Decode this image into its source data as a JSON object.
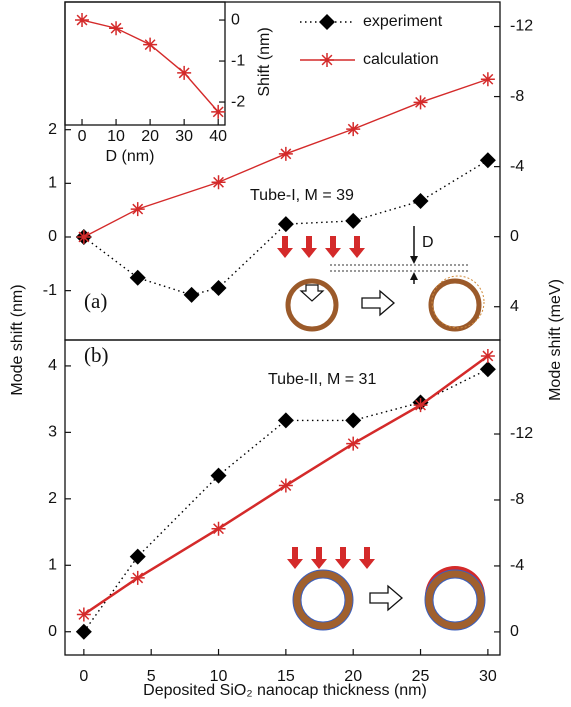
{
  "chart_data": [
    {
      "type": "line",
      "panel_label": "(a)",
      "annotation": "Tube-I, M = 39",
      "diagram_label": "D",
      "x": [
        0,
        4,
        8,
        10,
        15,
        20,
        25,
        30
      ],
      "series": [
        {
          "name": "experiment",
          "color": "#000000",
          "marker": "diamond",
          "linestyle": "dotted",
          "values": [
            0.0,
            -0.76,
            -1.08,
            -0.95,
            0.24,
            0.3,
            0.67,
            1.43
          ]
        },
        {
          "name": "calculation",
          "color": "#d42a2a",
          "marker": "asterisk",
          "linestyle": "solid",
          "x": [
            0,
            4,
            10,
            15,
            20,
            25,
            30
          ],
          "values": [
            0.0,
            0.52,
            1.02,
            1.55,
            2.01,
            2.51,
            2.94
          ]
        }
      ],
      "xlim": [
        -1.4,
        30.9
      ],
      "ylim": [
        -1.92,
        4.38
      ],
      "yticks": [
        -1,
        0,
        1,
        2
      ],
      "y2lim": [
        5.9,
        -13.4
      ],
      "y2ticks": [
        -12,
        -8,
        -4,
        0,
        4
      ],
      "legend": "upper right"
    },
    {
      "type": "line",
      "panel_label": "(b)",
      "annotation": "Tube-II, M = 31",
      "xlabel": "Deposited SiO₂ nanocap thickness (nm)",
      "ylabel": "Mode shift (nm)",
      "y2label": "Mode shift (meV)",
      "x": [
        0,
        4,
        10,
        15,
        20,
        25,
        30
      ],
      "series": [
        {
          "color": "#000000",
          "marker": "diamond",
          "linestyle": "dotted",
          "values": [
            0.0,
            1.13,
            2.35,
            3.18,
            3.18,
            3.45,
            3.95
          ]
        },
        {
          "color": "#d42a2a",
          "marker": "asterisk",
          "linestyle": "solid",
          "linewidth": 2.5,
          "values": [
            0.26,
            0.81,
            1.55,
            2.2,
            2.83,
            3.41,
            4.15
          ]
        }
      ],
      "xlim": [
        -1.4,
        30.9
      ],
      "xticks": [
        0,
        5,
        10,
        15,
        20,
        25,
        30
      ],
      "ylim": [
        -0.35,
        4.39
      ],
      "yticks": [
        0,
        1,
        2,
        3,
        4
      ],
      "y2lim": [
        1.4,
        -17.7
      ],
      "y2ticks": [
        -12,
        -8,
        -4,
        0
      ]
    },
    {
      "type": "line",
      "xlabel": "D (nm)",
      "y2label": "Shift (nm)",
      "x": [
        0,
        10,
        20,
        30,
        40
      ],
      "series": [
        {
          "color": "#d42a2a",
          "marker": "asterisk",
          "linestyle": "solid",
          "axis": "y2",
          "values": [
            0.0,
            -0.2,
            -0.6,
            -1.29,
            -2.24
          ]
        }
      ],
      "xlim": [
        -5,
        42
      ],
      "xticks": [
        0,
        10,
        20,
        30,
        40
      ],
      "y2lim": [
        -2.56,
        0.44
      ],
      "y2ticks": [
        -2,
        -1,
        0
      ]
    }
  ]
}
